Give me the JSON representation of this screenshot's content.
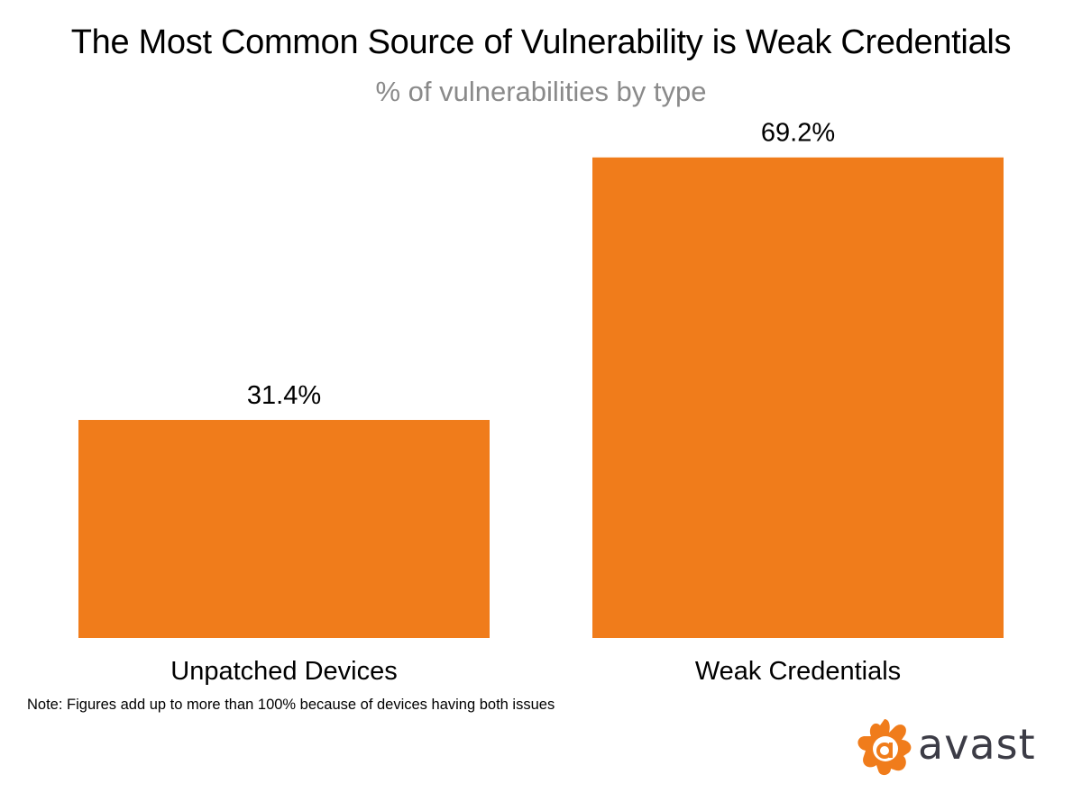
{
  "chart_data": {
    "type": "bar",
    "title": "The Most Common Source of Vulnerability is Weak Credentials",
    "subtitle": "% of vulnerabilities by type",
    "categories": [
      "Unpatched Devices",
      "Weak Credentials"
    ],
    "values": [
      31.4,
      69.2
    ],
    "value_labels": [
      "31.4%",
      "69.2%"
    ],
    "ylim": [
      0,
      75
    ],
    "grid": false,
    "bar_color": "#f07c1b",
    "note": "Note: Figures add up to more than 100% because of devices having both issues"
  },
  "brand": {
    "name": "avast",
    "logo_color": "#f07c1b",
    "text_color": "#3c3c46"
  }
}
